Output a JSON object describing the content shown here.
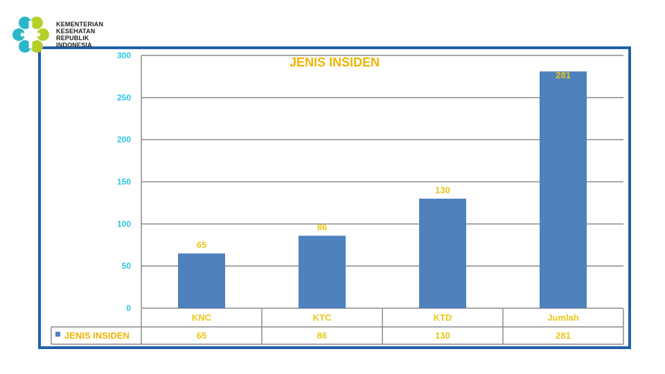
{
  "logo": {
    "lines": [
      "KEMENTERIAN",
      "KESEHATAN",
      "REPUBLIK",
      "INDONESIA"
    ]
  },
  "colors": {
    "bar": "#4f81bd",
    "frame": "#1f5fa8",
    "title": "#f0b400",
    "labels": "#e8c81a",
    "yticks": "#29c5e6",
    "grid": "#8a8a8a"
  },
  "chart_data": {
    "type": "bar",
    "title": "JENIS INSIDEN",
    "categories": [
      "KNC",
      "KTC",
      "KTD",
      "Jumlah"
    ],
    "series": [
      {
        "name": "JENIS INSIDEN",
        "values": [
          65,
          86,
          130,
          281
        ]
      }
    ],
    "ylim": [
      0,
      300
    ],
    "yticks": [
      0,
      50,
      100,
      150,
      200,
      250,
      300
    ],
    "grid": true,
    "data_table": true,
    "legend": "data-table-left"
  }
}
